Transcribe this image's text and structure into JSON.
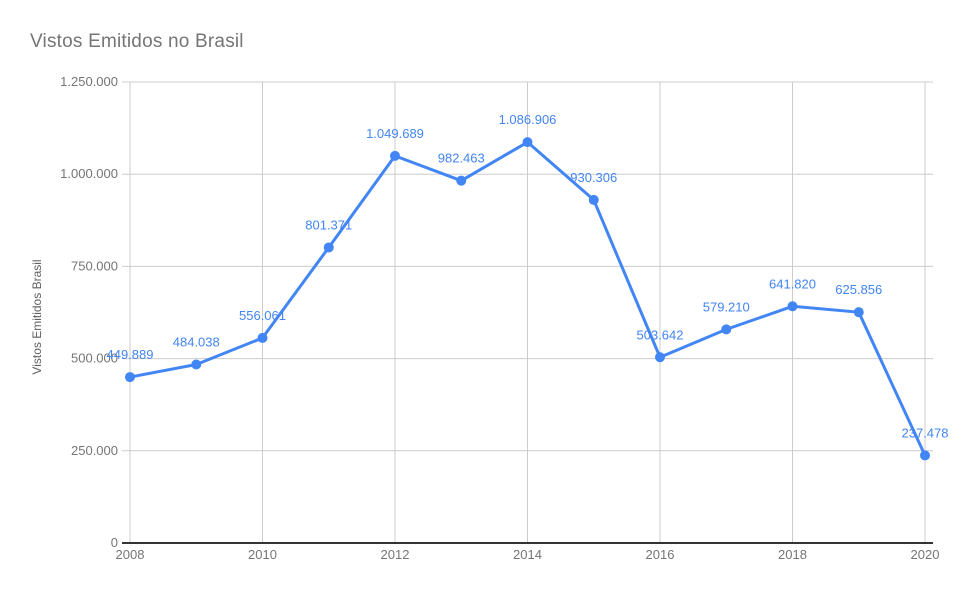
{
  "title": "Vistos Emitidos no Brasil",
  "chart_data": {
    "type": "line",
    "title": "Vistos Emitidos no Brasil",
    "xlabel": "",
    "ylabel": "Vistos Emitidos Brasil",
    "categories": [
      "2008",
      "2009",
      "2010",
      "2011",
      "2012",
      "2013",
      "2014",
      "2015",
      "2016",
      "2017",
      "2018",
      "2019",
      "2020"
    ],
    "values": [
      449889,
      484038,
      556061,
      801371,
      1049689,
      982463,
      1086906,
      930306,
      503642,
      579210,
      641820,
      625856,
      237478
    ],
    "point_labels": [
      "449.889",
      "484.038",
      "556.061",
      "801.371",
      "1.049.689",
      "982.463",
      "1.086.906",
      "930.306",
      "503.642",
      "579.210",
      "641.820",
      "625.856",
      "237.478"
    ],
    "x_tick_labels": [
      "2008",
      "2010",
      "2012",
      "2014",
      "2016",
      "2018",
      "2020"
    ],
    "y_tick_labels": [
      "0",
      "250.000",
      "500.000",
      "750.000",
      "1.000.000",
      "1.250.000"
    ],
    "y_tick_values": [
      0,
      250000,
      500000,
      750000,
      1000000,
      1250000
    ],
    "ylim": [
      0,
      1250000
    ],
    "grid": true,
    "legend": "none",
    "colors": {
      "series": "#4285f4",
      "grid": "#cccccc",
      "axis_line": "#333333",
      "tick_label": "#757575",
      "title": "#757575",
      "axis_title": "#616161",
      "background": "#ffffff"
    }
  }
}
